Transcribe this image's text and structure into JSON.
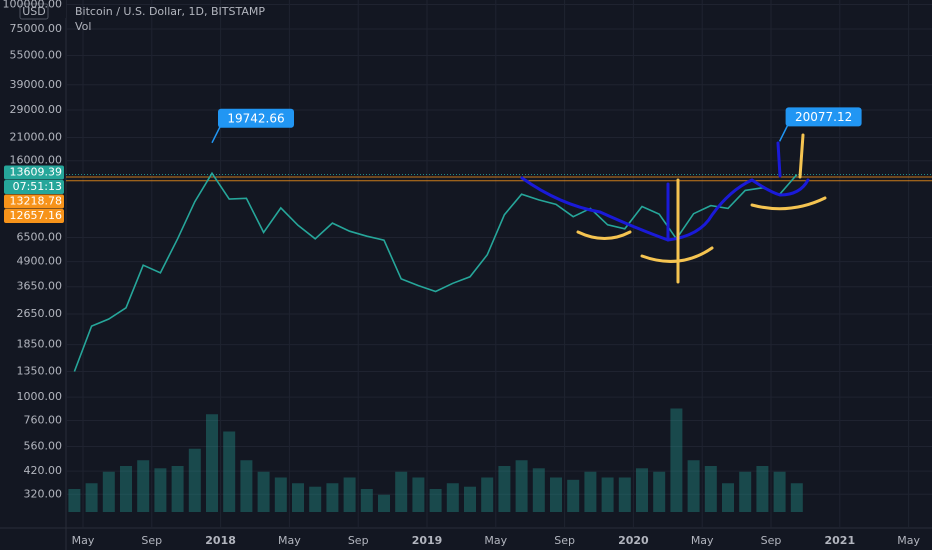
{
  "chart_data": {
    "type": "line",
    "title": "Bitcoin / U.S. Dollar, 1D, BITSTAMP",
    "subtitle": "Vol",
    "currency": "USD",
    "log_scale": true,
    "grid": true,
    "color": "#26a69a",
    "x": [
      "2017-04",
      "2017-05",
      "2017-06",
      "2017-07",
      "2017-08",
      "2017-09",
      "2017-10",
      "2017-11",
      "2017-12",
      "2018-01",
      "2018-02",
      "2018-03",
      "2018-04",
      "2018-05",
      "2018-06",
      "2018-07",
      "2018-08",
      "2018-09",
      "2018-10",
      "2018-11",
      "2018-12",
      "2019-01",
      "2019-02",
      "2019-03",
      "2019-04",
      "2019-05",
      "2019-06",
      "2019-07",
      "2019-08",
      "2019-09",
      "2019-10",
      "2019-11",
      "2019-12",
      "2020-01",
      "2020-02",
      "2020-03",
      "2020-04",
      "2020-05",
      "2020-06",
      "2020-07",
      "2020-08",
      "2020-09",
      "2020-10"
    ],
    "values": [
      1350,
      2300,
      2500,
      2850,
      4700,
      4300,
      6400,
      9900,
      13800,
      10200,
      10300,
      6900,
      9200,
      7500,
      6400,
      7700,
      7000,
      6600,
      6300,
      4000,
      3700,
      3450,
      3800,
      4100,
      5300,
      8500,
      10800,
      10100,
      9600,
      8300,
      9150,
      7550,
      7200,
      9350,
      8550,
      6400,
      8600,
      9450,
      9150,
      11300,
      11650,
      10780,
      13600
    ],
    "volume": {
      "color": "#26a69a",
      "values": [
        20,
        25,
        35,
        40,
        45,
        38,
        40,
        55,
        85,
        70,
        45,
        35,
        30,
        25,
        22,
        25,
        30,
        20,
        15,
        35,
        30,
        20,
        25,
        22,
        30,
        40,
        45,
        38,
        30,
        28,
        35,
        30,
        30,
        38,
        35,
        90,
        45,
        40,
        25,
        35,
        40,
        35,
        25
      ],
      "y2lim": [
        0,
        100
      ]
    },
    "ylim": [
      236.6,
      105400
    ],
    "yticks": [
      {
        "value": 100000,
        "label": "100000.00"
      },
      {
        "value": 75000,
        "label": "75000.00"
      },
      {
        "value": 55000,
        "label": "55000.00"
      },
      {
        "value": 39000,
        "label": "39000.00"
      },
      {
        "value": 29000,
        "label": "29000.00"
      },
      {
        "value": 21000,
        "label": "21000.00"
      },
      {
        "value": 16000,
        "label": "16000.00"
      },
      {
        "value": 6500,
        "label": "6500.00"
      },
      {
        "value": 4900,
        "label": "4900.00"
      },
      {
        "value": 3650,
        "label": "3650.00"
      },
      {
        "value": 2650,
        "label": "2650.00"
      },
      {
        "value": 1850,
        "label": "1850.00"
      },
      {
        "value": 1350,
        "label": "1350.00"
      },
      {
        "value": 1000,
        "label": "1000.00"
      },
      {
        "value": 760,
        "label": "760.00"
      },
      {
        "value": 560,
        "label": "560.00"
      },
      {
        "value": 420,
        "label": "420.00"
      },
      {
        "value": 320,
        "label": "320.00"
      }
    ],
    "xticks": [
      {
        "value": "2017-05",
        "label": "May"
      },
      {
        "value": "2017-09",
        "label": "Sep"
      },
      {
        "value": "2018-01",
        "label": "2018"
      },
      {
        "value": "2018-05",
        "label": "May"
      },
      {
        "value": "2018-09",
        "label": "Sep"
      },
      {
        "value": "2019-01",
        "label": "2019"
      },
      {
        "value": "2019-05",
        "label": "May"
      },
      {
        "value": "2019-09",
        "label": "Sep"
      },
      {
        "value": "2020-01",
        "label": "2020"
      },
      {
        "value": "2020-05",
        "label": "May"
      },
      {
        "value": "2020-09",
        "label": "Sep"
      },
      {
        "value": "2021-01",
        "label": "2021"
      },
      {
        "value": "2021-05",
        "label": "May"
      }
    ],
    "price_lines": [
      {
        "value": 13609.39,
        "color": "#26a69a"
      },
      {
        "value": 13218.78,
        "color": "#f7931a"
      },
      {
        "value": 12657.16,
        "color": "#f7931a"
      }
    ],
    "countdown": "07:51:13",
    "annotations": [
      {
        "label": 19742.66,
        "x": "2017-12"
      },
      {
        "label": 20077.12,
        "x": "2020-09"
      }
    ]
  }
}
